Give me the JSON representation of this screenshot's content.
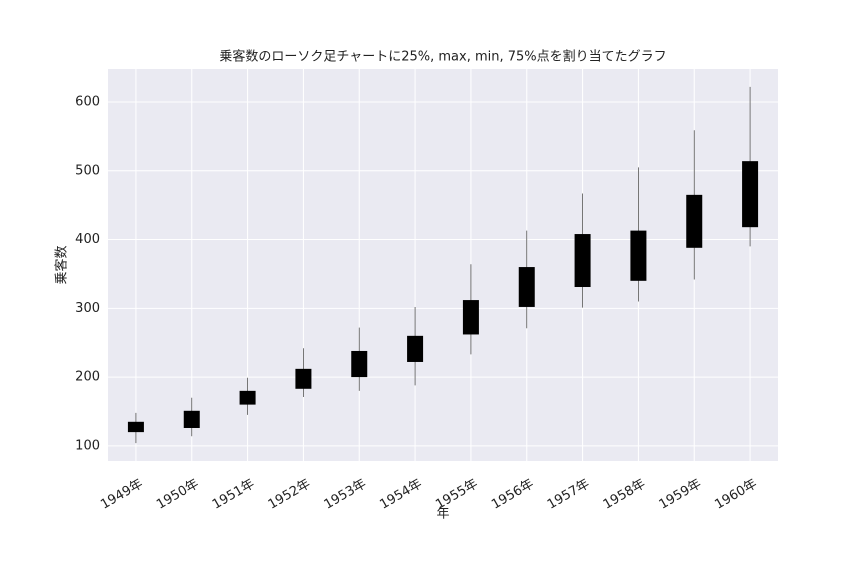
{
  "chart_data": {
    "type": "candlestick",
    "title": "乗客数のローソク足チャートに25%, max, min, 75%点を割り当てたグラフ",
    "x_label": "年",
    "y_label": "乗客数",
    "categories": [
      "1949年",
      "1950年",
      "1951年",
      "1952年",
      "1953年",
      "1954年",
      "1955年",
      "1956年",
      "1957年",
      "1958年",
      "1959年",
      "1960年"
    ],
    "low": [
      104,
      114,
      145,
      171,
      180,
      188,
      233,
      271,
      301,
      310,
      342,
      390
    ],
    "q1": [
      120,
      126,
      160,
      183,
      200,
      222,
      262,
      302,
      331,
      340,
      388,
      418
    ],
    "q3": [
      135,
      151,
      180,
      212,
      238,
      260,
      312,
      360,
      408,
      413,
      465,
      514
    ],
    "high": [
      148,
      170,
      199,
      242,
      272,
      302,
      364,
      413,
      467,
      505,
      559,
      622
    ],
    "color": "#000000",
    "wick_color": "#555555",
    "ylim": [
      78,
      648
    ],
    "yticks": [
      100,
      200,
      300,
      400,
      500,
      600
    ],
    "grid": true
  }
}
